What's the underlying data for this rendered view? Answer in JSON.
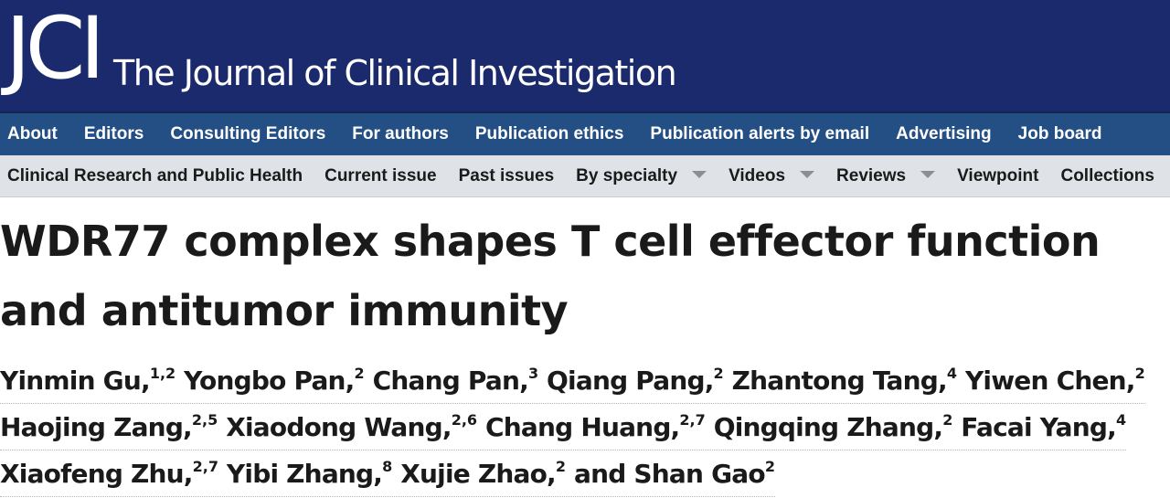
{
  "header": {
    "logo": "JCI",
    "journal_name": "The Journal of Clinical Investigation"
  },
  "nav_primary": [
    "About",
    "Editors",
    "Consulting Editors",
    "For authors",
    "Publication ethics",
    "Publication alerts by email",
    "Advertising",
    "Job board"
  ],
  "nav_secondary": [
    {
      "label": "Clinical Research and Public Health",
      "dropdown": false
    },
    {
      "label": "Current issue",
      "dropdown": false
    },
    {
      "label": "Past issues",
      "dropdown": false
    },
    {
      "label": "By specialty",
      "dropdown": true
    },
    {
      "label": "Videos",
      "dropdown": true
    },
    {
      "label": "Reviews",
      "dropdown": true
    },
    {
      "label": "Viewpoint",
      "dropdown": false
    },
    {
      "label": "Collections",
      "dropdown": false
    }
  ],
  "article": {
    "title": "WDR77 complex shapes T cell effector function and antitumor immunity",
    "author_lines": [
      [
        {
          "name": "Yinmin Gu,",
          "aff": "1,2"
        },
        {
          "name": "Yongbo Pan,",
          "aff": "2"
        },
        {
          "name": "Chang Pan,",
          "aff": "3"
        },
        {
          "name": "Qiang Pang,",
          "aff": "2"
        },
        {
          "name": "Zhantong Tang,",
          "aff": "4"
        },
        {
          "name": "Yiwen Chen,",
          "aff": "2"
        }
      ],
      [
        {
          "name": "Haojing Zang,",
          "aff": "2,5"
        },
        {
          "name": "Xiaodong Wang,",
          "aff": "2,6"
        },
        {
          "name": "Chang Huang,",
          "aff": "2,7"
        },
        {
          "name": "Qingqing Zhang,",
          "aff": "2"
        },
        {
          "name": "Facai Yang,",
          "aff": "4"
        }
      ],
      [
        {
          "name": "Xiaofeng Zhu,",
          "aff": "2,7"
        },
        {
          "name": "Yibi Zhang,",
          "aff": "8"
        },
        {
          "name": "Xujie Zhao,",
          "aff": "2"
        },
        {
          "name": "and Shan Gao",
          "aff": "2"
        }
      ]
    ]
  }
}
